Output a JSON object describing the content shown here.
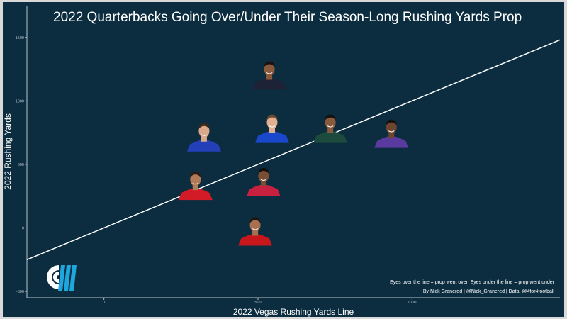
{
  "chart_data": {
    "type": "scatter",
    "title": "2022 Quarterbacks Going Over/Under Their Season-Long Rushing Yards Prop",
    "xlabel": "2022 Vegas Rushing Yards Line",
    "ylabel": "2022 Rushing Yards",
    "xlim": [
      -250,
      1480
    ],
    "ylim": [
      -550,
      1750
    ],
    "x_ticks": [
      0,
      500,
      1000
    ],
    "y_ticks": [
      -500,
      0,
      500,
      1000,
      1500
    ],
    "grid": false,
    "reference_line": {
      "type": "y=x",
      "color": "#ffffff"
    },
    "marker": "player-headshot",
    "points": [
      {
        "x": 537,
        "y": 1200,
        "jersey": "#1d2236",
        "skin": "#8a5a3c",
        "hair": "#1a1210"
      },
      {
        "x": 325,
        "y": 713,
        "jersey": "#2340b8",
        "skin": "#d9a888",
        "hair": "#3a2a1e"
      },
      {
        "x": 546,
        "y": 781,
        "jersey": "#1a48cc",
        "skin": "#e0b090",
        "hair": "#6a4a30"
      },
      {
        "x": 735,
        "y": 781,
        "jersey": "#1c4a3c",
        "skin": "#8a5a3c",
        "hair": "#141010"
      },
      {
        "x": 933,
        "y": 742,
        "jersey": "#5a3a9e",
        "skin": "#6e4630",
        "hair": "#141010"
      },
      {
        "x": 297,
        "y": 331,
        "jersey": "#d21b26",
        "skin": "#b07a58",
        "hair": "#2a1a12"
      },
      {
        "x": 518,
        "y": 360,
        "jersey": "#c8203f",
        "skin": "#7a4e34",
        "hair": "#141010"
      },
      {
        "x": 491,
        "y": -28,
        "jersey": "#c8161d",
        "skin": "#a87050",
        "hair": "#1e140e"
      }
    ],
    "caption": [
      "Eyes over the line = prop went over. Eyes under the line = prop went under",
      "By Nick Granered | @Nick_Granered | Data: @4for4football"
    ]
  },
  "colors": {
    "background": "#0b2d3f",
    "text": "#ffffff",
    "axis": "#b8c2c8",
    "logo_white": "#ffffff",
    "logo_blue": "#1ea7dc"
  },
  "logo": "4for4-logo"
}
